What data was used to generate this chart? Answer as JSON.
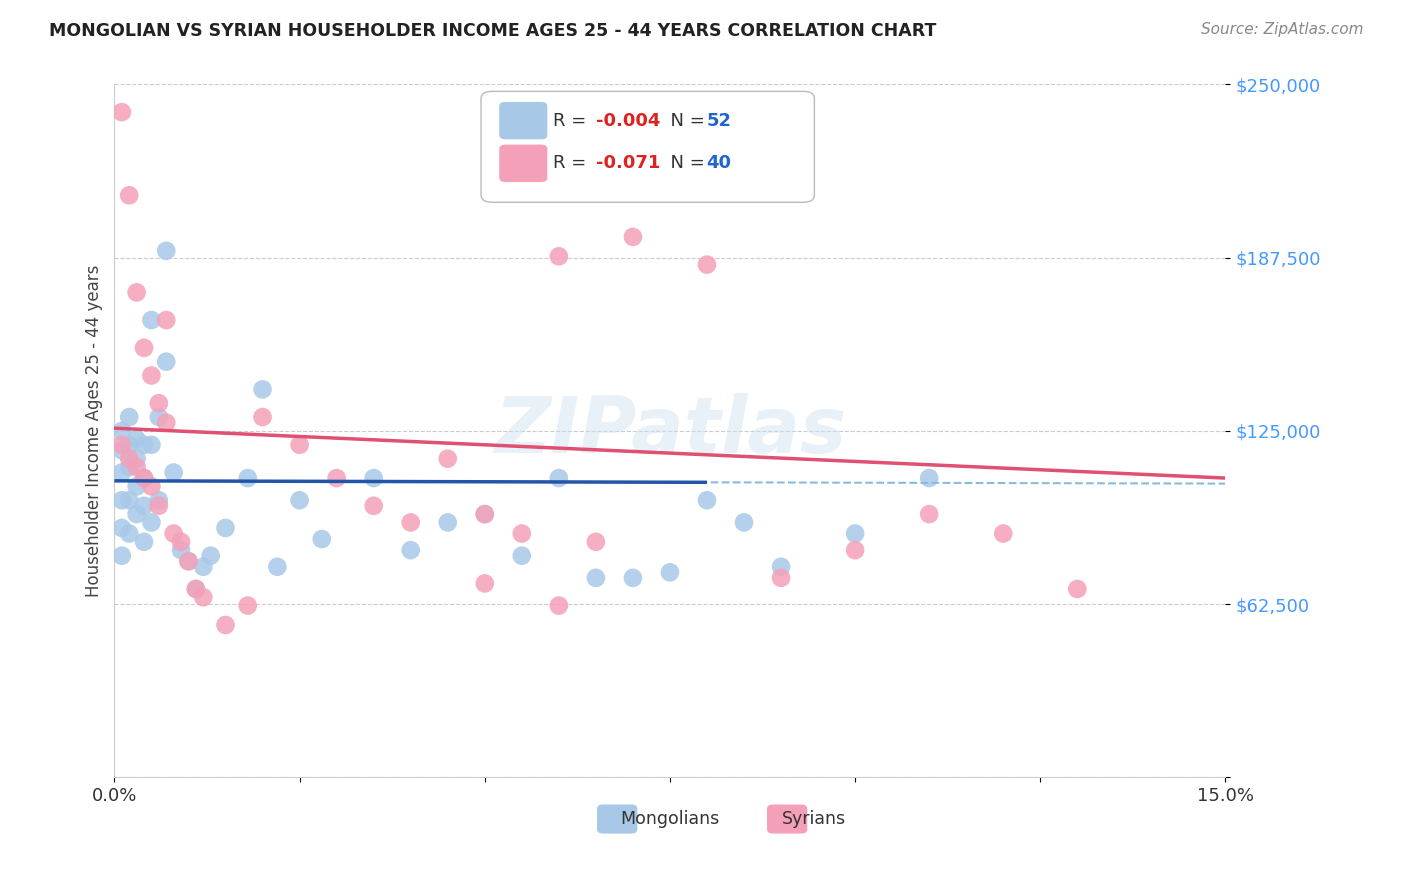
{
  "title": "MONGOLIAN VS SYRIAN HOUSEHOLDER INCOME AGES 25 - 44 YEARS CORRELATION CHART",
  "source": "Source: ZipAtlas.com",
  "ylabel": "Householder Income Ages 25 - 44 years",
  "xlim": [
    0.0,
    0.15
  ],
  "ylim": [
    0,
    250000
  ],
  "yticks": [
    0,
    62500,
    125000,
    187500,
    250000
  ],
  "ytick_labels": [
    "",
    "$62,500",
    "$125,000",
    "$187,500",
    "$250,000"
  ],
  "xticks": [
    0.0,
    0.025,
    0.05,
    0.075,
    0.1,
    0.125,
    0.15
  ],
  "mongolian_color": "#a8c8e8",
  "syrian_color": "#f4a0b8",
  "mongolian_line_color": "#2255aa",
  "syrian_line_color": "#e05070",
  "mongolian_dashed_color": "#88bbdd",
  "background_color": "#ffffff",
  "mong_R": -0.004,
  "mong_N": 52,
  "syr_R": -0.071,
  "syr_N": 40,
  "mong_x": [
    0.001,
    0.001,
    0.001,
    0.001,
    0.001,
    0.001,
    0.002,
    0.002,
    0.002,
    0.002,
    0.002,
    0.003,
    0.003,
    0.003,
    0.003,
    0.004,
    0.004,
    0.004,
    0.004,
    0.005,
    0.005,
    0.005,
    0.006,
    0.006,
    0.007,
    0.007,
    0.008,
    0.009,
    0.01,
    0.011,
    0.012,
    0.013,
    0.015,
    0.018,
    0.02,
    0.022,
    0.025,
    0.028,
    0.035,
    0.04,
    0.045,
    0.05,
    0.055,
    0.06,
    0.065,
    0.07,
    0.075,
    0.08,
    0.085,
    0.09,
    0.1,
    0.11
  ],
  "mong_y": [
    125000,
    118000,
    110000,
    100000,
    90000,
    80000,
    130000,
    120000,
    112000,
    100000,
    88000,
    122000,
    115000,
    105000,
    95000,
    120000,
    108000,
    98000,
    85000,
    165000,
    120000,
    92000,
    130000,
    100000,
    190000,
    150000,
    110000,
    82000,
    78000,
    68000,
    76000,
    80000,
    90000,
    108000,
    140000,
    76000,
    100000,
    86000,
    108000,
    82000,
    92000,
    95000,
    80000,
    108000,
    72000,
    72000,
    74000,
    100000,
    92000,
    76000,
    88000,
    108000
  ],
  "syr_x": [
    0.001,
    0.001,
    0.002,
    0.002,
    0.003,
    0.003,
    0.004,
    0.004,
    0.005,
    0.005,
    0.006,
    0.006,
    0.007,
    0.007,
    0.008,
    0.009,
    0.01,
    0.011,
    0.012,
    0.015,
    0.018,
    0.02,
    0.025,
    0.03,
    0.035,
    0.04,
    0.045,
    0.05,
    0.055,
    0.06,
    0.065,
    0.07,
    0.08,
    0.09,
    0.1,
    0.11,
    0.12,
    0.13,
    0.05,
    0.06
  ],
  "syr_y": [
    120000,
    240000,
    115000,
    210000,
    112000,
    175000,
    108000,
    155000,
    105000,
    145000,
    98000,
    135000,
    165000,
    128000,
    88000,
    85000,
    78000,
    68000,
    65000,
    55000,
    62000,
    130000,
    120000,
    108000,
    98000,
    92000,
    115000,
    95000,
    88000,
    188000,
    85000,
    195000,
    185000,
    72000,
    82000,
    95000,
    88000,
    68000,
    70000,
    62000
  ]
}
